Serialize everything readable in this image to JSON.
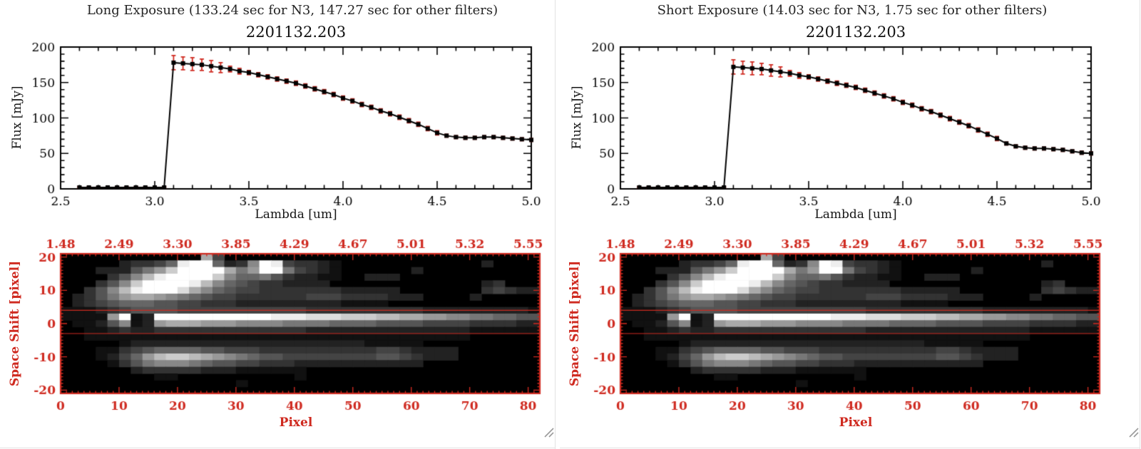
{
  "colors": {
    "background": "#ffffff",
    "axis_black": "#000000",
    "accent_red": "#cf2a20",
    "title_text": "#242424"
  },
  "panels": [
    {
      "header": "Long Exposure (133.24 sec for N3, 147.27 sec for other filters)"
    },
    {
      "header": "Short Exposure (14.03 sec for N3, 1.75 sec for other filters)"
    }
  ],
  "chart_data": [
    {
      "type": "line",
      "panel": "long",
      "title": "2201132.203",
      "xlabel": "Lambda [um]",
      "ylabel": "Flux [mJy]",
      "xlim": [
        2.5,
        5.0
      ],
      "ylim": [
        0,
        200
      ],
      "xticks": [
        2.5,
        3.0,
        3.5,
        4.0,
        4.5,
        5.0
      ],
      "xtick_labels": [
        "2.5",
        "3.0",
        "3.5",
        "4.0",
        "4.5",
        "5.0"
      ],
      "yticks": [
        0,
        50,
        100,
        150,
        200
      ],
      "ytick_labels": [
        "0",
        "50",
        "100",
        "150",
        "200"
      ],
      "marker": "filled-square",
      "line_color": "#000000",
      "errorbar_color": "#cf2a20",
      "points": [
        [
          2.6,
          2,
          1
        ],
        [
          2.65,
          2,
          1
        ],
        [
          2.7,
          2,
          1
        ],
        [
          2.75,
          2,
          1
        ],
        [
          2.8,
          2,
          1
        ],
        [
          2.85,
          2,
          1
        ],
        [
          2.9,
          2,
          1
        ],
        [
          2.95,
          2,
          1
        ],
        [
          3.0,
          2,
          1
        ],
        [
          3.05,
          2,
          1
        ],
        [
          3.1,
          178,
          10
        ],
        [
          3.15,
          177,
          9
        ],
        [
          3.2,
          176,
          9
        ],
        [
          3.25,
          175,
          8
        ],
        [
          3.3,
          173,
          8
        ],
        [
          3.35,
          171,
          7
        ],
        [
          3.4,
          169,
          4
        ],
        [
          3.45,
          166,
          4
        ],
        [
          3.5,
          164,
          3
        ],
        [
          3.55,
          161,
          3
        ],
        [
          3.6,
          158,
          3
        ],
        [
          3.65,
          155,
          3
        ],
        [
          3.7,
          152,
          3
        ],
        [
          3.75,
          149,
          3
        ],
        [
          3.8,
          145,
          3
        ],
        [
          3.85,
          141,
          3
        ],
        [
          3.9,
          137,
          3
        ],
        [
          3.95,
          133,
          3
        ],
        [
          4.0,
          128,
          3
        ],
        [
          4.05,
          124,
          3
        ],
        [
          4.1,
          119,
          3
        ],
        [
          4.15,
          115,
          3
        ],
        [
          4.2,
          110,
          3
        ],
        [
          4.25,
          106,
          3
        ],
        [
          4.3,
          101,
          3
        ],
        [
          4.35,
          96,
          3
        ],
        [
          4.4,
          91,
          3
        ],
        [
          4.45,
          85,
          3
        ],
        [
          4.5,
          79,
          3
        ],
        [
          4.55,
          75,
          2
        ],
        [
          4.6,
          73,
          2
        ],
        [
          4.65,
          72,
          2
        ],
        [
          4.7,
          72,
          2
        ],
        [
          4.75,
          73,
          2
        ],
        [
          4.8,
          73,
          2
        ],
        [
          4.85,
          72,
          2
        ],
        [
          4.9,
          71,
          2
        ],
        [
          4.95,
          70,
          2
        ],
        [
          5.0,
          69,
          2
        ]
      ]
    },
    {
      "type": "line",
      "panel": "short",
      "title": "2201132.203",
      "xlabel": "Lambda [um]",
      "ylabel": "Flux [mJy]",
      "xlim": [
        2.5,
        5.0
      ],
      "ylim": [
        0,
        200
      ],
      "xticks": [
        2.5,
        3.0,
        3.5,
        4.0,
        4.5,
        5.0
      ],
      "xtick_labels": [
        "2.5",
        "3.0",
        "3.5",
        "4.0",
        "4.5",
        "5.0"
      ],
      "yticks": [
        0,
        50,
        100,
        150,
        200
      ],
      "ytick_labels": [
        "0",
        "50",
        "100",
        "150",
        "200"
      ],
      "marker": "filled-square",
      "line_color": "#000000",
      "errorbar_color": "#cf2a20",
      "points": [
        [
          2.6,
          2,
          1
        ],
        [
          2.65,
          2,
          1
        ],
        [
          2.7,
          2,
          1
        ],
        [
          2.75,
          2,
          1
        ],
        [
          2.8,
          2,
          1
        ],
        [
          2.85,
          2,
          1
        ],
        [
          2.9,
          2,
          1
        ],
        [
          2.95,
          2,
          1
        ],
        [
          3.0,
          2,
          1
        ],
        [
          3.05,
          2,
          1
        ],
        [
          3.1,
          172,
          10
        ],
        [
          3.15,
          171,
          9
        ],
        [
          3.2,
          170,
          9
        ],
        [
          3.25,
          169,
          8
        ],
        [
          3.3,
          167,
          8
        ],
        [
          3.35,
          165,
          7
        ],
        [
          3.4,
          163,
          4
        ],
        [
          3.45,
          160,
          4
        ],
        [
          3.5,
          158,
          3
        ],
        [
          3.55,
          155,
          3
        ],
        [
          3.6,
          152,
          3
        ],
        [
          3.65,
          149,
          3
        ],
        [
          3.7,
          146,
          3
        ],
        [
          3.75,
          143,
          3
        ],
        [
          3.8,
          139,
          3
        ],
        [
          3.85,
          135,
          3
        ],
        [
          3.9,
          131,
          3
        ],
        [
          3.95,
          127,
          3
        ],
        [
          4.0,
          122,
          3
        ],
        [
          4.05,
          118,
          3
        ],
        [
          4.1,
          113,
          3
        ],
        [
          4.15,
          109,
          3
        ],
        [
          4.2,
          104,
          3
        ],
        [
          4.25,
          99,
          3
        ],
        [
          4.3,
          94,
          3
        ],
        [
          4.35,
          89,
          3
        ],
        [
          4.4,
          83,
          3
        ],
        [
          4.45,
          77,
          3
        ],
        [
          4.5,
          71,
          3
        ],
        [
          4.55,
          64,
          2
        ],
        [
          4.6,
          60,
          2
        ],
        [
          4.65,
          58,
          2
        ],
        [
          4.7,
          57,
          2
        ],
        [
          4.75,
          57,
          2
        ],
        [
          4.8,
          56,
          2
        ],
        [
          4.85,
          55,
          2
        ],
        [
          4.9,
          53,
          2
        ],
        [
          4.95,
          51,
          2
        ],
        [
          5.0,
          50,
          2
        ]
      ]
    },
    {
      "type": "heatmap",
      "panels": [
        "long",
        "short"
      ],
      "xlabel": "Pixel",
      "ylabel": "Space Shift [pixel]",
      "xlim": [
        0,
        82
      ],
      "ylim": [
        -21,
        21
      ],
      "xticks": [
        0,
        10,
        20,
        30,
        40,
        50,
        60,
        70,
        80
      ],
      "xtick_labels": [
        "0",
        "10",
        "20",
        "30",
        "40",
        "50",
        "60",
        "70",
        "80"
      ],
      "yticks": [
        20,
        10,
        0,
        -10,
        -20
      ],
      "ytick_labels": [
        "20",
        "10",
        "0",
        "-10",
        "-20"
      ],
      "top_tick_labels": [
        "1.48",
        "2.49",
        "3.30",
        "3.85",
        "4.29",
        "4.67",
        "5.01",
        "5.32",
        "5.55"
      ],
      "axis_color": "#cf2a20",
      "aperture_lines_y": [
        4,
        -3
      ],
      "palette": "grayscale",
      "grid_cols": 41,
      "grid_rows": 21,
      "rows": [
        "000000000000a4000000000000000000000000000",
        "0000023346eff6238fe4332100000000000020000",
        "000222579cffffa79ff7432100000020000000000",
        "0000358beffffc866753221100222000000000000",
        "000358cffffeb8654332222000000000000023000",
        "00358befffda86544333333322222000000034322",
        "023579aa987654433333344433332220000200000",
        "02345666554433322222222211110000000000000",
        "11123455554444444444433333333332222222221",
        "11119f12ffffffffffeeedddcccbbaa9988776655",
        "011258129aaa99988887777666655554444333322",
        "00112322333333333333322222222222222111111",
        "00111111111111111111111111111111111000000",
        "00000122222222222222222222111110000000000",
        "00011345666655444333333333344322220000000",
        "00012469bccba9876554444444455432220000000",
        "00001357888765544333222222222220000000000",
        "00000023333322211111100000000000000000000",
        "00000000110000000000100000000000000000000",
        "00000000000000010000000000000000000000000",
        "00000000000000000000000000000000000000000"
      ]
    }
  ]
}
